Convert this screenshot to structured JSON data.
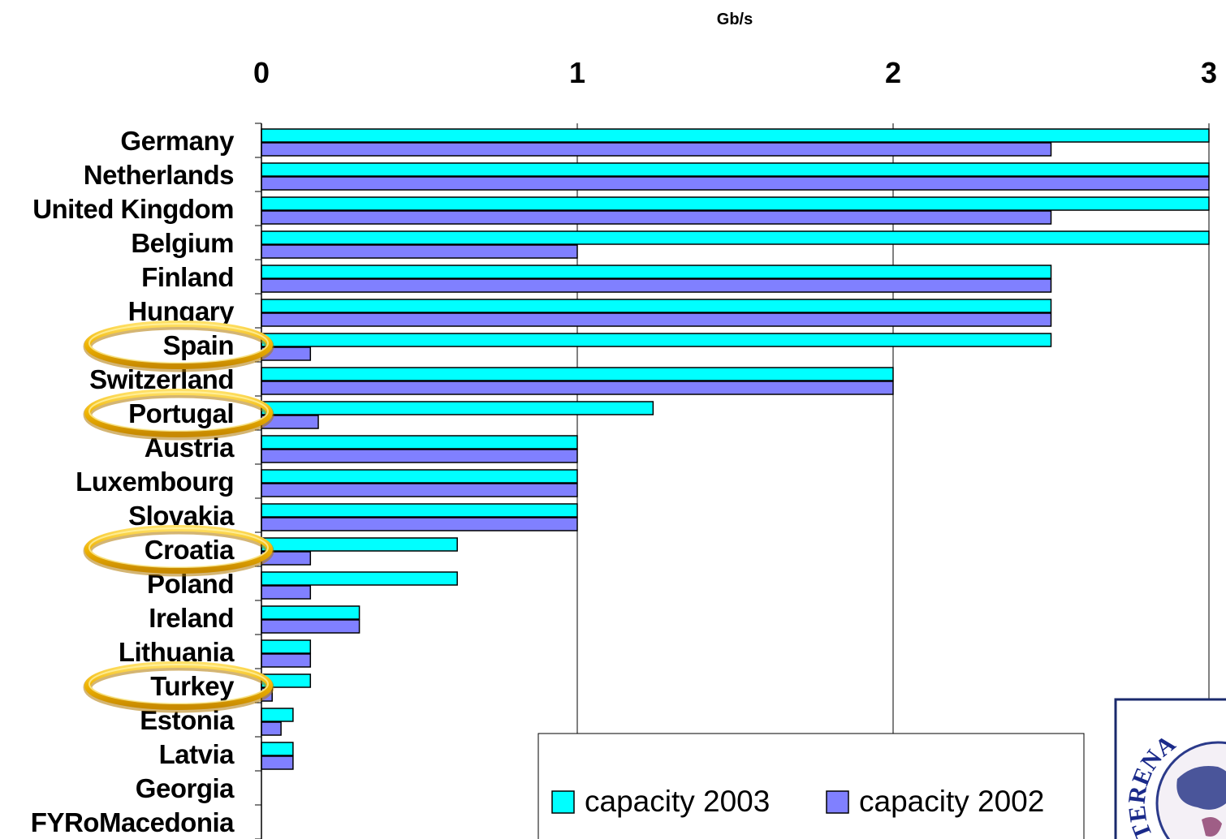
{
  "chart_data": {
    "type": "bar",
    "orientation": "horizontal",
    "xlabel": "Gb/s",
    "xlim": [
      0,
      3
    ],
    "xticks": [
      "0",
      "1",
      "2",
      "3"
    ],
    "grid": true,
    "legend_position": "bottom-right",
    "categories": [
      "Germany",
      "Netherlands",
      "United Kingdom",
      "Belgium",
      "Finland",
      "Hungary",
      "Spain",
      "Switzerland",
      "Portugal",
      "Austria",
      "Luxembourg",
      "Slovakia",
      "Croatia",
      "Poland",
      "Ireland",
      "Lithuania",
      "Turkey",
      "Estonia",
      "Latvia",
      "Georgia",
      "FYRoMacedonia"
    ],
    "series": [
      {
        "name": "capacity 2003",
        "color": "#00ffff",
        "values": [
          3.0,
          3.0,
          3.0,
          3.0,
          2.5,
          2.5,
          2.5,
          2.0,
          1.24,
          1.0,
          1.0,
          1.0,
          0.62,
          0.62,
          0.31,
          0.155,
          0.155,
          0.1,
          0.1,
          0,
          0
        ]
      },
      {
        "name": "capacity 2002",
        "color": "#8080ff",
        "values": [
          2.5,
          3.0,
          2.5,
          1.0,
          2.5,
          2.5,
          0.155,
          2.0,
          0.18,
          1.0,
          1.0,
          1.0,
          0.155,
          0.155,
          0.31,
          0.155,
          0.034,
          0.062,
          0.1,
          0,
          0
        ]
      }
    ],
    "highlighted": [
      "Spain",
      "Portugal",
      "Croatia",
      "Turkey"
    ]
  },
  "logo": {
    "text": "TERENA"
  }
}
